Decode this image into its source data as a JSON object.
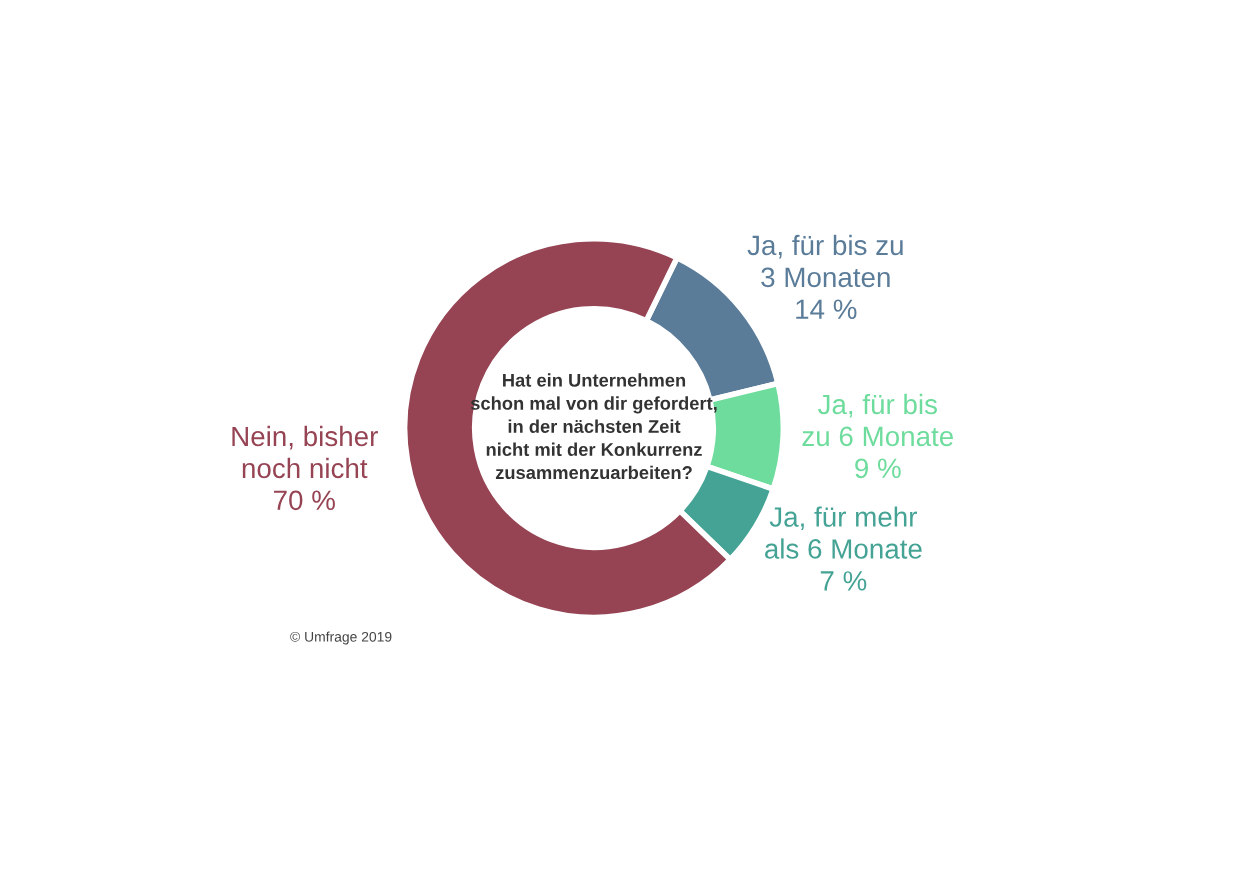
{
  "chart_data": {
    "type": "donut",
    "title": "Hat ein Unternehmen\nschon mal von dir gefordert,\nin der nächsten Zeit\nnicht mit der Konkurrenz\nzusammenzuarbeiten?",
    "categories": [
      "Ja, für bis zu\n3 Monaten",
      "Ja, für bis\nzu 6 Monate",
      "Ja, für mehr\nals 6 Monate",
      "Nein, bisher\nnoch nicht"
    ],
    "values": [
      14,
      9,
      7,
      70
    ],
    "value_labels": [
      "14 %",
      "9 %",
      "7 %",
      "70 %"
    ],
    "colors": [
      "#5b7c99",
      "#6ddc9c",
      "#44a394",
      "#964453"
    ],
    "annotations": [
      "© Umfrage 2019"
    ],
    "legend": false
  }
}
